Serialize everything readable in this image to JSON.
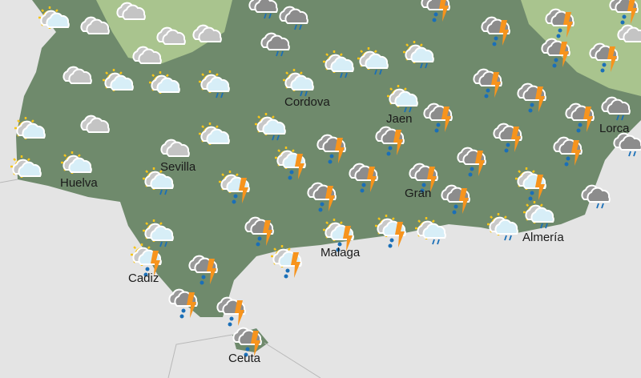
{
  "colors": {
    "sea": "#e4e4e4",
    "land": "#6f8a6c",
    "highland": "#a9c48e",
    "sun": "#f6c51b",
    "lightning": "#f7941d",
    "rain": "#1a6fb8"
  },
  "cities": [
    "Huelva",
    "Sevilla",
    "Cordova",
    "Jaen",
    "Gran",
    "Malaga",
    "Cadiz",
    "Almería",
    "Lorca",
    "Ceuta"
  ],
  "icons": [
    "sun-cloud",
    "cloud",
    "cloud",
    "cloud",
    "cloud",
    "cloud",
    "cloud",
    "sun-cloud",
    "sun-cloud",
    "sun-cloud-rain",
    "cloud-rain",
    "cloud-rain",
    "cloud-rain",
    "sun-cloud-rain",
    "sun-cloud-rain",
    "sun-cloud-rain",
    "sun-cloud-rain",
    "storm",
    "storm",
    "storm",
    "storm",
    "storm",
    "storm",
    "cloud",
    "sun-cloud",
    "cloud",
    "sun-cloud",
    "sun-cloud",
    "cloud",
    "sun-cloud",
    "sun-cloud-rain",
    "sun-storm",
    "sun-cloud-rain",
    "sun-storm",
    "sun-cloud-rain",
    "storm",
    "storm",
    "storm",
    "storm",
    "storm",
    "storm",
    "storm",
    "storm",
    "storm",
    "cloud-rain",
    "cloud-rain",
    "storm",
    "storm",
    "storm",
    "storm",
    "sun-storm",
    "cloud-rain",
    "sun-cloud-rain",
    "sun-storm",
    "storm",
    "sun-storm",
    "sun-storm",
    "sun-cloud-rain",
    "sun-cloud-rain",
    "sun-cloud-rain",
    "storm",
    "sun-storm",
    "storm",
    "storm",
    "storm"
  ]
}
